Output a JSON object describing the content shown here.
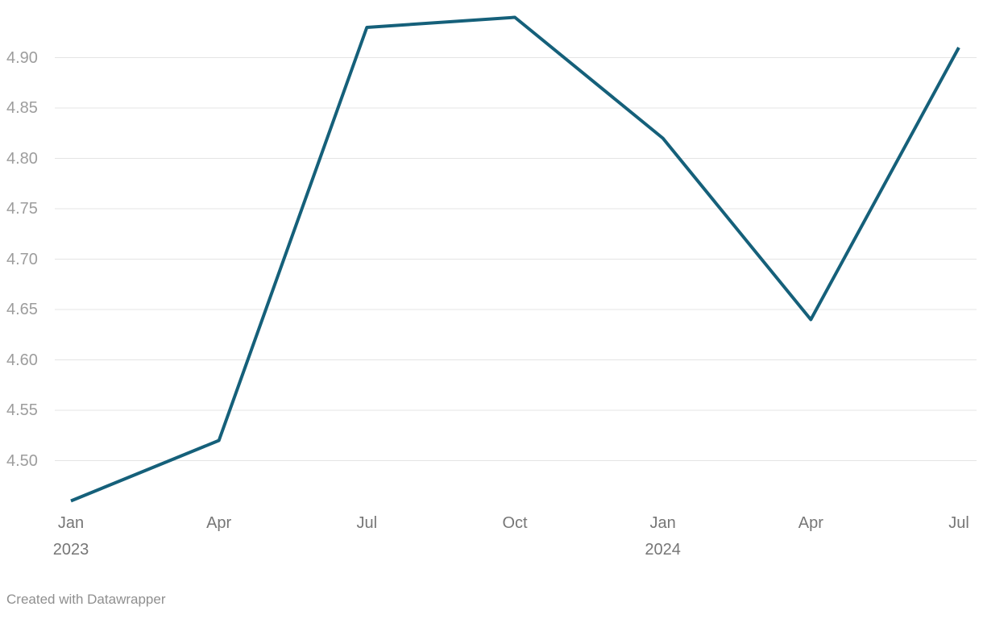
{
  "chart_data": {
    "type": "line",
    "x": [
      "Jan 2023",
      "Apr",
      "Jul",
      "Oct",
      "Jan 2024",
      "Apr",
      "Jul"
    ],
    "x_tick_lines": [
      [
        "Jan",
        "2023"
      ],
      [
        "Apr"
      ],
      [
        "Jul"
      ],
      [
        "Oct"
      ],
      [
        "Jan",
        "2024"
      ],
      [
        "Apr"
      ],
      [
        "Jul"
      ]
    ],
    "series": [
      {
        "name": "value",
        "values": [
          4.46,
          4.52,
          4.93,
          4.94,
          4.82,
          4.64,
          4.91
        ]
      }
    ],
    "title": "",
    "xlabel": "",
    "ylabel": "",
    "ylim": [
      4.46,
      4.94
    ],
    "yticks": [
      4.5,
      4.55,
      4.6,
      4.65,
      4.7,
      4.75,
      4.8,
      4.85,
      4.9
    ],
    "ytick_labels": [
      "4.50",
      "4.55",
      "4.60",
      "4.65",
      "4.70",
      "4.75",
      "4.80",
      "4.85",
      "4.90"
    ],
    "grid": true,
    "legend_position": "none"
  },
  "colors": {
    "line": "#15607a",
    "grid": "#e4e4e4",
    "y_tick_text": "#9d9d9d",
    "x_tick_text": "#767676",
    "credit_text": "#8f8f8f",
    "background": "#ffffff"
  },
  "footer": {
    "credit": "Created with Datawrapper"
  }
}
